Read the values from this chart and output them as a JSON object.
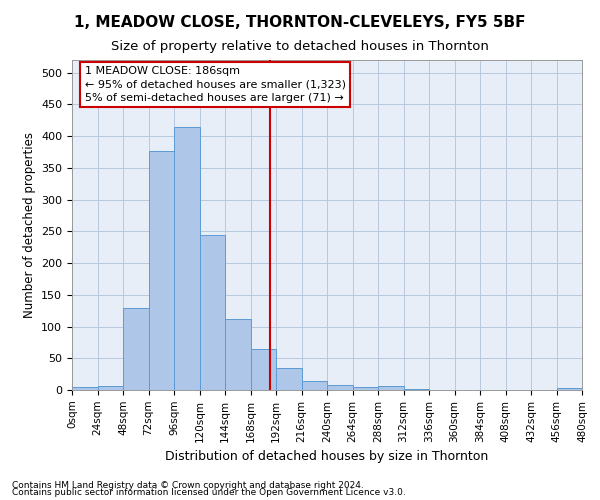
{
  "title": "1, MEADOW CLOSE, THORNTON-CLEVELEYS, FY5 5BF",
  "subtitle": "Size of property relative to detached houses in Thornton",
  "xlabel": "Distribution of detached houses by size in Thornton",
  "ylabel": "Number of detached properties",
  "bin_edges": [
    0,
    24,
    48,
    72,
    96,
    120,
    144,
    168,
    192,
    216,
    240,
    264,
    288,
    312,
    336,
    360,
    384,
    408,
    432,
    456,
    480
  ],
  "bar_heights": [
    4,
    6,
    130,
    376,
    415,
    245,
    112,
    65,
    35,
    14,
    8,
    5,
    7,
    2,
    0,
    0,
    0,
    0,
    0,
    3
  ],
  "bar_color": "#aec6e8",
  "bar_edge_color": "#5b9bd5",
  "property_size": 186,
  "vline_color": "#cc0000",
  "annotation_line1": "1 MEADOW CLOSE: 186sqm",
  "annotation_line2": "← 95% of detached houses are smaller (1,323)",
  "annotation_line3": "5% of semi-detached houses are larger (71) →",
  "annotation_box_color": "#ffffff",
  "annotation_box_edge_color": "#cc0000",
  "footnote1": "Contains HM Land Registry data © Crown copyright and database right 2024.",
  "footnote2": "Contains public sector information licensed under the Open Government Licence v3.0.",
  "ylim": [
    0,
    520
  ],
  "xlim": [
    0,
    480
  ],
  "bg_color": "#e8eef8",
  "grid_color": "#b8c8e0",
  "title_fontsize": 11,
  "subtitle_fontsize": 9.5,
  "axis_label_fontsize": 8.5,
  "tick_fontsize": 7.5,
  "annotation_fontsize": 8,
  "footnote_fontsize": 6.5
}
